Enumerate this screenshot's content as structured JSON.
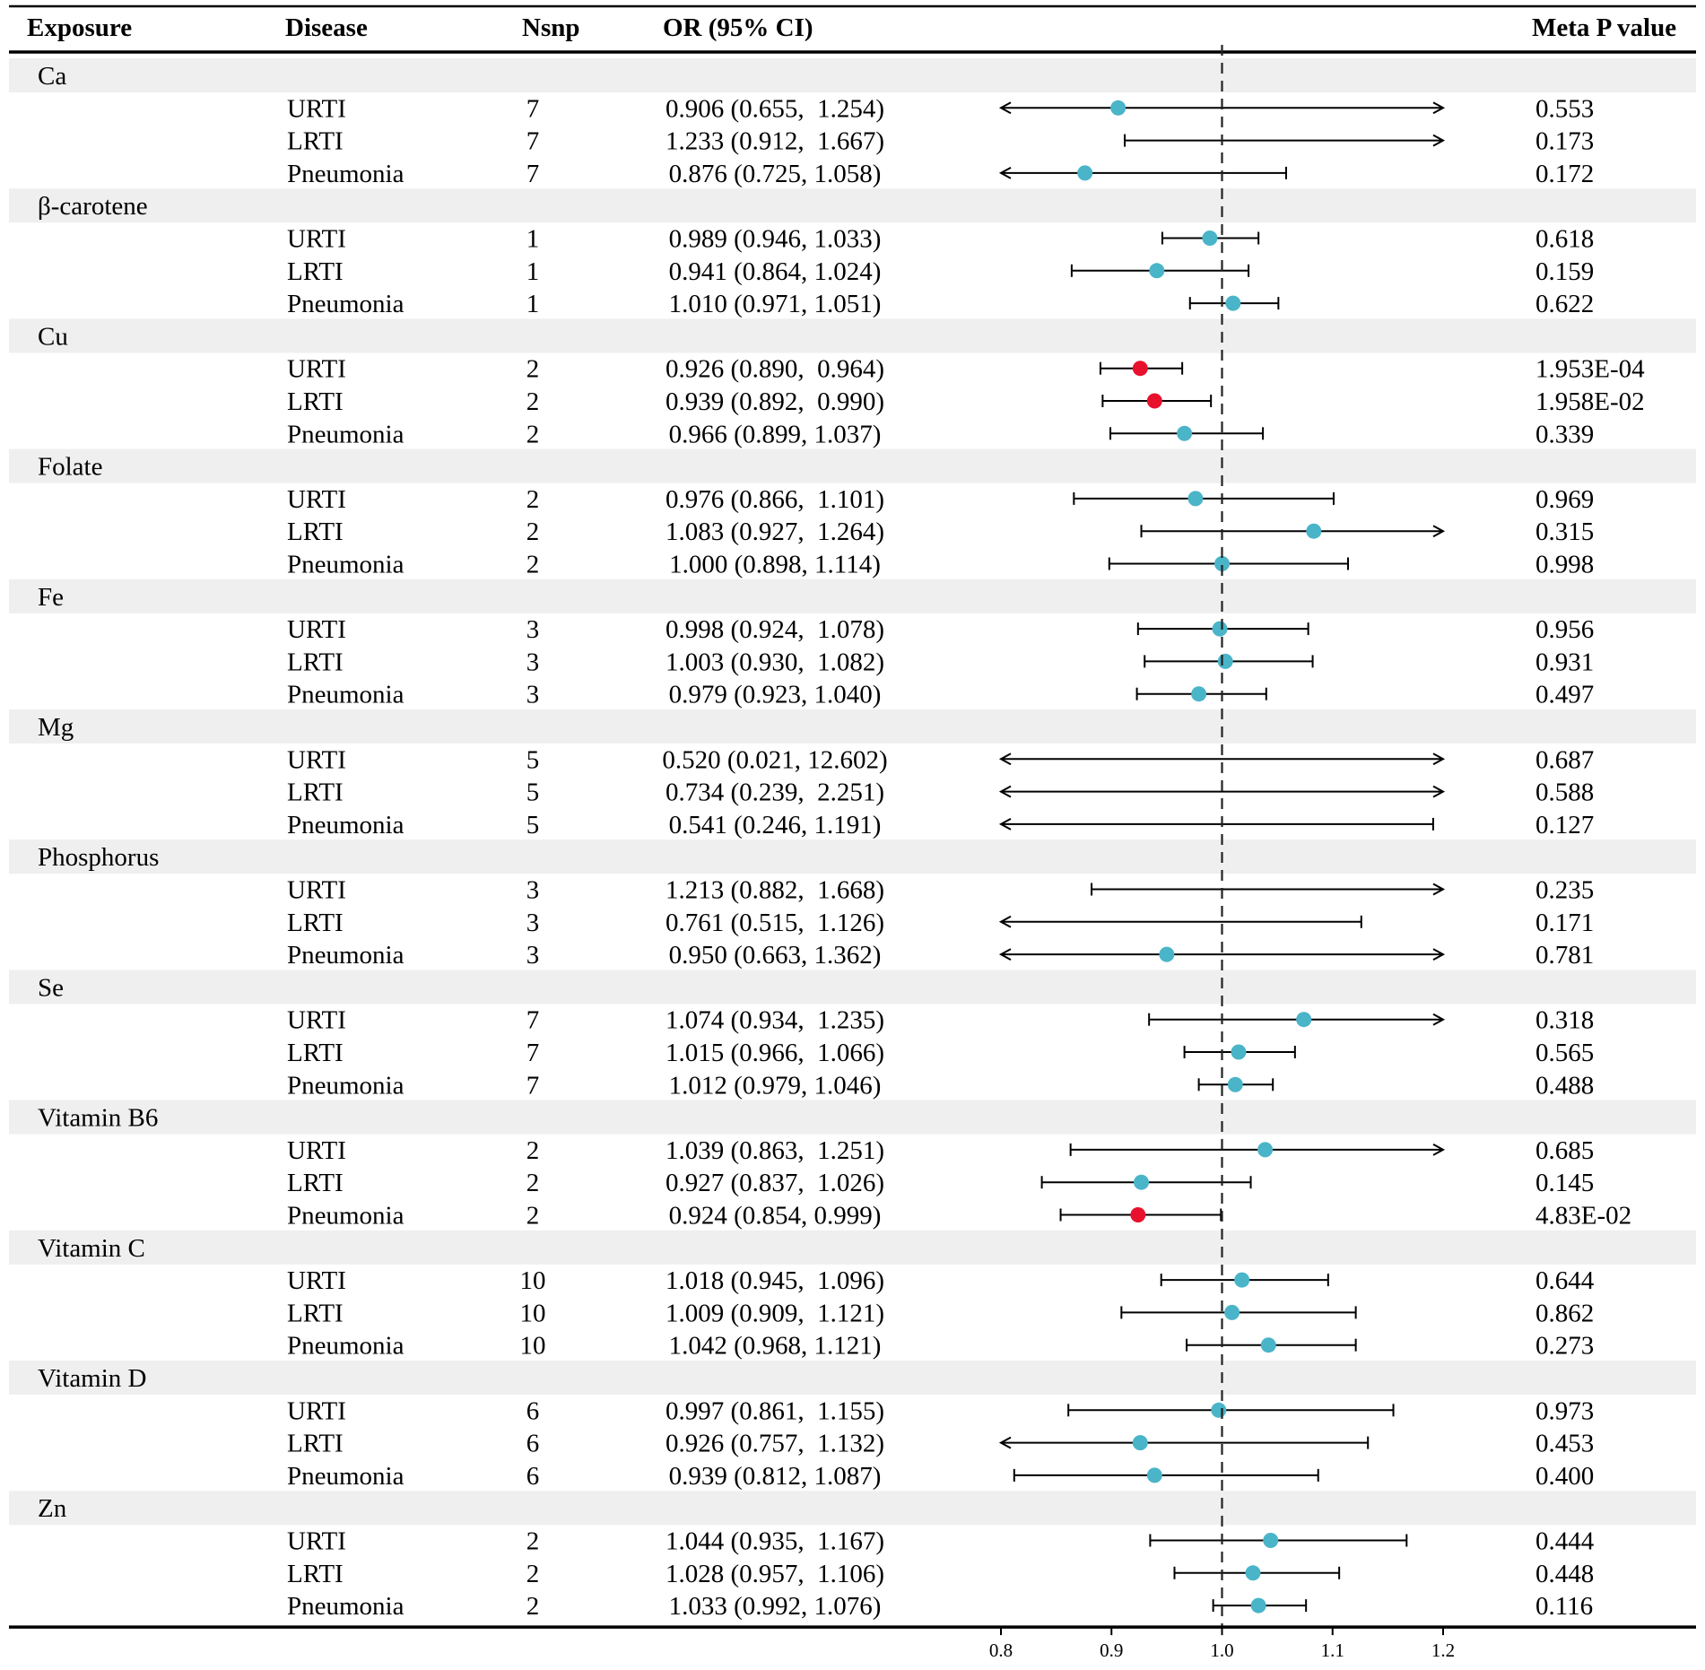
{
  "headers": {
    "exposure": "Exposure",
    "disease": "Disease",
    "nsnp": "Nsnp",
    "or_ci": "OR (95% CI)",
    "pvalue": "Meta P value"
  },
  "colors": {
    "significant": "#e8112d",
    "nonsignificant": "#4ab4c8",
    "band": "#efefef",
    "line": "#000000"
  },
  "chart_data": {
    "type": "forest",
    "axis": {
      "min": 0.8,
      "max": 1.2,
      "ticks": [
        "0.8",
        "0.9",
        "1.0",
        "1.1",
        "1.2"
      ],
      "reference": 1.0
    },
    "groups": [
      {
        "exposure": "Ca",
        "rows": [
          {
            "disease": "URTI",
            "nsnp": "7",
            "or_text": "0.906 (0.655,  1.254)",
            "or": 0.906,
            "lo": 0.655,
            "hi": 1.254,
            "p": "0.553",
            "sig": false
          },
          {
            "disease": "LRTI",
            "nsnp": "7",
            "or_text": "1.233 (0.912,  1.667)",
            "or": 1.233,
            "lo": 0.912,
            "hi": 1.667,
            "p": "0.173",
            "sig": false
          },
          {
            "disease": "Pneumonia",
            "nsnp": "7",
            "or_text": "0.876 (0.725, 1.058)",
            "or": 0.876,
            "lo": 0.725,
            "hi": 1.058,
            "p": "0.172",
            "sig": false
          }
        ]
      },
      {
        "exposure": "β-carotene",
        "rows": [
          {
            "disease": "URTI",
            "nsnp": "1",
            "or_text": "0.989 (0.946, 1.033)",
            "or": 0.989,
            "lo": 0.946,
            "hi": 1.033,
            "p": "0.618",
            "sig": false
          },
          {
            "disease": "LRTI",
            "nsnp": "1",
            "or_text": "0.941 (0.864, 1.024)",
            "or": 0.941,
            "lo": 0.864,
            "hi": 1.024,
            "p": "0.159",
            "sig": false
          },
          {
            "disease": "Pneumonia",
            "nsnp": "1",
            "or_text": "1.010 (0.971, 1.051)",
            "or": 1.01,
            "lo": 0.971,
            "hi": 1.051,
            "p": "0.622",
            "sig": false
          }
        ]
      },
      {
        "exposure": "Cu",
        "rows": [
          {
            "disease": "URTI",
            "nsnp": "2",
            "or_text": "0.926 (0.890,  0.964)",
            "or": 0.926,
            "lo": 0.89,
            "hi": 0.964,
            "p": "1.953E-04",
            "sig": true
          },
          {
            "disease": "LRTI",
            "nsnp": "2",
            "or_text": "0.939 (0.892,  0.990)",
            "or": 0.939,
            "lo": 0.892,
            "hi": 0.99,
            "p": "1.958E-02",
            "sig": true
          },
          {
            "disease": "Pneumonia",
            "nsnp": "2",
            "or_text": "0.966 (0.899, 1.037)",
            "or": 0.966,
            "lo": 0.899,
            "hi": 1.037,
            "p": "0.339",
            "sig": false
          }
        ]
      },
      {
        "exposure": "Folate",
        "rows": [
          {
            "disease": "URTI",
            "nsnp": "2",
            "or_text": "0.976 (0.866,  1.101)",
            "or": 0.976,
            "lo": 0.866,
            "hi": 1.101,
            "p": "0.969",
            "sig": false
          },
          {
            "disease": "LRTI",
            "nsnp": "2",
            "or_text": "1.083 (0.927,  1.264)",
            "or": 1.083,
            "lo": 0.927,
            "hi": 1.264,
            "p": "0.315",
            "sig": false
          },
          {
            "disease": "Pneumonia",
            "nsnp": "2",
            "or_text": "1.000 (0.898, 1.114)",
            "or": 1.0,
            "lo": 0.898,
            "hi": 1.114,
            "p": "0.998",
            "sig": false
          }
        ]
      },
      {
        "exposure": "Fe",
        "rows": [
          {
            "disease": "URTI",
            "nsnp": "3",
            "or_text": "0.998 (0.924,  1.078)",
            "or": 0.998,
            "lo": 0.924,
            "hi": 1.078,
            "p": "0.956",
            "sig": false
          },
          {
            "disease": "LRTI",
            "nsnp": "3",
            "or_text": "1.003 (0.930,  1.082)",
            "or": 1.003,
            "lo": 0.93,
            "hi": 1.082,
            "p": "0.931",
            "sig": false
          },
          {
            "disease": "Pneumonia",
            "nsnp": "3",
            "or_text": "0.979 (0.923, 1.040)",
            "or": 0.979,
            "lo": 0.923,
            "hi": 1.04,
            "p": "0.497",
            "sig": false
          }
        ]
      },
      {
        "exposure": "Mg",
        "rows": [
          {
            "disease": "URTI",
            "nsnp": "5",
            "or_text": "0.520 (0.021, 12.602)",
            "or": 0.52,
            "lo": 0.021,
            "hi": 12.602,
            "p": "0.687",
            "sig": false
          },
          {
            "disease": "LRTI",
            "nsnp": "5",
            "or_text": "0.734 (0.239,  2.251)",
            "or": 0.734,
            "lo": 0.239,
            "hi": 2.251,
            "p": "0.588",
            "sig": false
          },
          {
            "disease": "Pneumonia",
            "nsnp": "5",
            "or_text": "0.541 (0.246, 1.191)",
            "or": 0.541,
            "lo": 0.246,
            "hi": 1.191,
            "p": "0.127",
            "sig": false
          }
        ]
      },
      {
        "exposure": "Phosphorus",
        "rows": [
          {
            "disease": "URTI",
            "nsnp": "3",
            "or_text": "1.213 (0.882,  1.668)",
            "or": 1.213,
            "lo": 0.882,
            "hi": 1.668,
            "p": "0.235",
            "sig": false
          },
          {
            "disease": "LRTI",
            "nsnp": "3",
            "or_text": "0.761 (0.515,  1.126)",
            "or": 0.761,
            "lo": 0.515,
            "hi": 1.126,
            "p": "0.171",
            "sig": false
          },
          {
            "disease": "Pneumonia",
            "nsnp": "3",
            "or_text": "0.950 (0.663, 1.362)",
            "or": 0.95,
            "lo": 0.663,
            "hi": 1.362,
            "p": "0.781",
            "sig": false
          }
        ]
      },
      {
        "exposure": "Se",
        "rows": [
          {
            "disease": "URTI",
            "nsnp": "7",
            "or_text": "1.074 (0.934,  1.235)",
            "or": 1.074,
            "lo": 0.934,
            "hi": 1.235,
            "p": "0.318",
            "sig": false
          },
          {
            "disease": "LRTI",
            "nsnp": "7",
            "or_text": "1.015 (0.966,  1.066)",
            "or": 1.015,
            "lo": 0.966,
            "hi": 1.066,
            "p": "0.565",
            "sig": false
          },
          {
            "disease": "Pneumonia",
            "nsnp": "7",
            "or_text": "1.012 (0.979, 1.046)",
            "or": 1.012,
            "lo": 0.979,
            "hi": 1.046,
            "p": "0.488",
            "sig": false
          }
        ]
      },
      {
        "exposure": "Vitamin B6",
        "rows": [
          {
            "disease": "URTI",
            "nsnp": "2",
            "or_text": "1.039 (0.863,  1.251)",
            "or": 1.039,
            "lo": 0.863,
            "hi": 1.251,
            "p": "0.685",
            "sig": false
          },
          {
            "disease": "LRTI",
            "nsnp": "2",
            "or_text": "0.927 (0.837,  1.026)",
            "or": 0.927,
            "lo": 0.837,
            "hi": 1.026,
            "p": "0.145",
            "sig": false
          },
          {
            "disease": "Pneumonia",
            "nsnp": "2",
            "or_text": "0.924 (0.854, 0.999)",
            "or": 0.924,
            "lo": 0.854,
            "hi": 0.999,
            "p": "4.83E-02",
            "sig": true
          }
        ]
      },
      {
        "exposure": "Vitamin C",
        "rows": [
          {
            "disease": "URTI",
            "nsnp": "10",
            "or_text": "1.018 (0.945,  1.096)",
            "or": 1.018,
            "lo": 0.945,
            "hi": 1.096,
            "p": "0.644",
            "sig": false
          },
          {
            "disease": "LRTI",
            "nsnp": "10",
            "or_text": "1.009 (0.909,  1.121)",
            "or": 1.009,
            "lo": 0.909,
            "hi": 1.121,
            "p": "0.862",
            "sig": false
          },
          {
            "disease": "Pneumonia",
            "nsnp": "10",
            "or_text": "1.042 (0.968, 1.121)",
            "or": 1.042,
            "lo": 0.968,
            "hi": 1.121,
            "p": "0.273",
            "sig": false
          }
        ]
      },
      {
        "exposure": "Vitamin D",
        "rows": [
          {
            "disease": "URTI",
            "nsnp": "6",
            "or_text": "0.997 (0.861,  1.155)",
            "or": 0.997,
            "lo": 0.861,
            "hi": 1.155,
            "p": "0.973",
            "sig": false
          },
          {
            "disease": "LRTI",
            "nsnp": "6",
            "or_text": "0.926 (0.757,  1.132)",
            "or": 0.926,
            "lo": 0.757,
            "hi": 1.132,
            "p": "0.453",
            "sig": false
          },
          {
            "disease": "Pneumonia",
            "nsnp": "6",
            "or_text": "0.939 (0.812, 1.087)",
            "or": 0.939,
            "lo": 0.812,
            "hi": 1.087,
            "p": "0.400",
            "sig": false
          }
        ]
      },
      {
        "exposure": "Zn",
        "rows": [
          {
            "disease": "URTI",
            "nsnp": "2",
            "or_text": "1.044 (0.935,  1.167)",
            "or": 1.044,
            "lo": 0.935,
            "hi": 1.167,
            "p": "0.444",
            "sig": false
          },
          {
            "disease": "LRTI",
            "nsnp": "2",
            "or_text": "1.028 (0.957,  1.106)",
            "or": 1.028,
            "lo": 0.957,
            "hi": 1.106,
            "p": "0.448",
            "sig": false
          },
          {
            "disease": "Pneumonia",
            "nsnp": "2",
            "or_text": "1.033 (0.992, 1.076)",
            "or": 1.033,
            "lo": 0.992,
            "hi": 1.076,
            "p": "0.116",
            "sig": false
          }
        ]
      }
    ]
  }
}
